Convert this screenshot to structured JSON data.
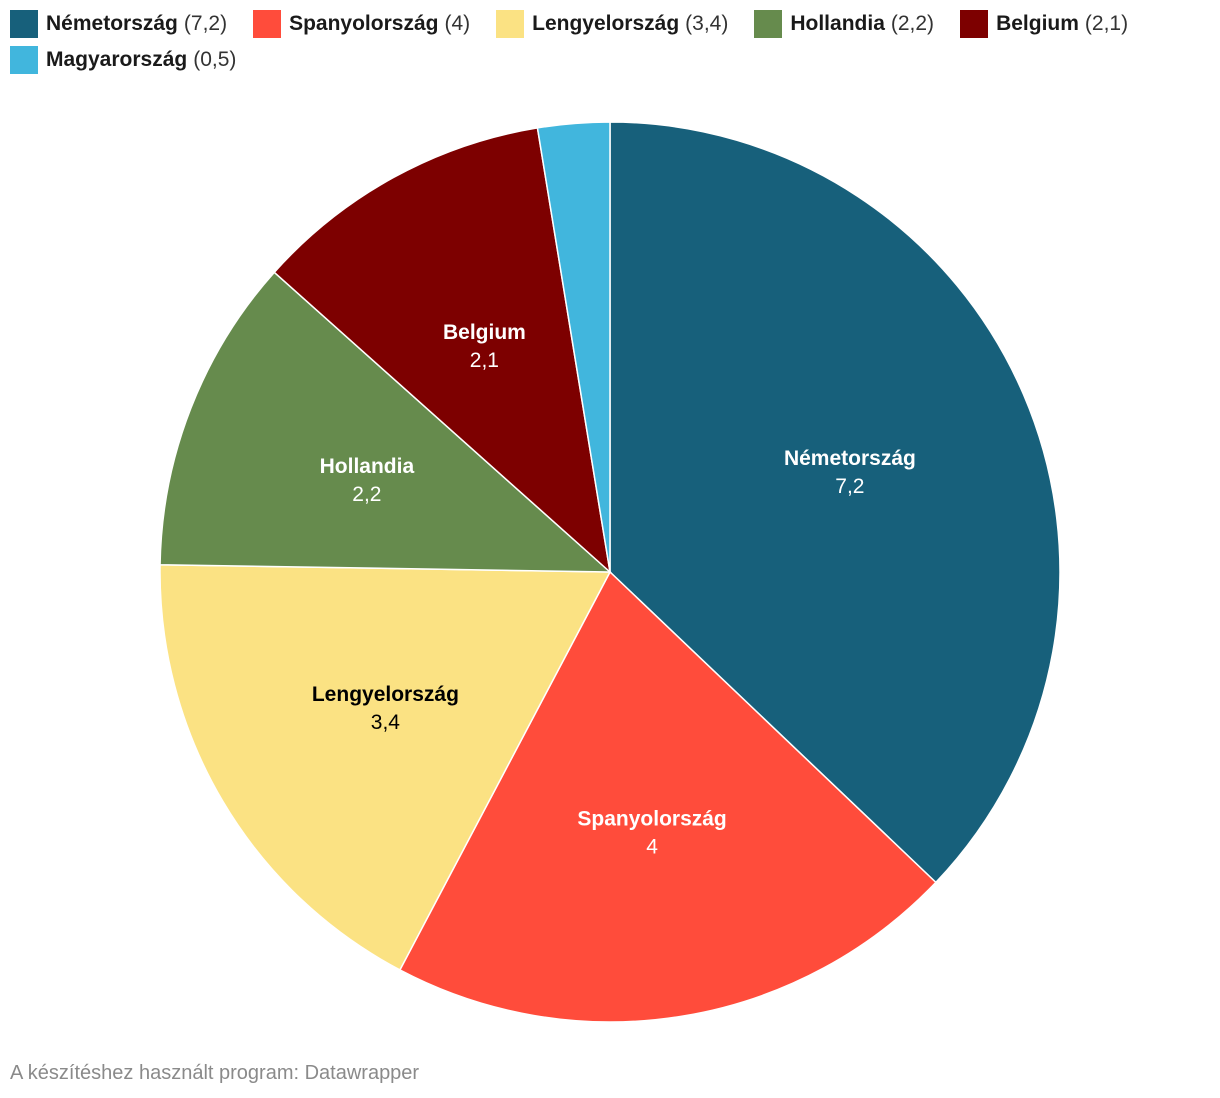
{
  "chart_data": {
    "type": "pie",
    "categories": [
      "Németország",
      "Spanyolország",
      "Lengyelország",
      "Hollandia",
      "Belgium",
      "Magyarország"
    ],
    "values": [
      7.2,
      4,
      3.4,
      2.2,
      2.1,
      0.5
    ],
    "value_labels": [
      "7,2",
      "4",
      "3,4",
      "2,2",
      "2,1",
      "0,5"
    ],
    "legend_values": [
      "(7,2)",
      "(4)",
      "(3,4)",
      "(2,2)",
      "(2,1)",
      "(0,5)"
    ],
    "colors": [
      "#17607b",
      "#ff4c3b",
      "#fbe283",
      "#668b4d",
      "#7d0000",
      "#41b6dd"
    ],
    "label_colors": [
      "#ffffff",
      "#ffffff",
      "#000000",
      "#ffffff",
      "#ffffff",
      "#ffffff"
    ],
    "show_slice_label": [
      true,
      true,
      true,
      true,
      true,
      false
    ],
    "legend_position": "top",
    "start": "top",
    "direction": "clockwise"
  },
  "footer": {
    "credit": "A készítéshez használt program: Datawrapper"
  }
}
